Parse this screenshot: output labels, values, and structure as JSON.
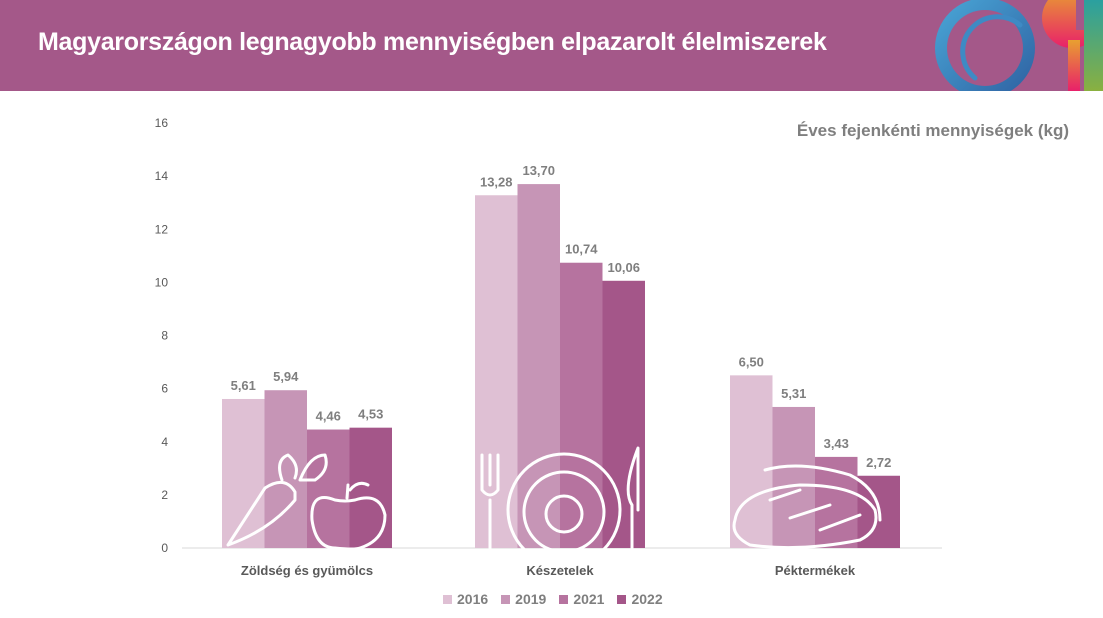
{
  "header": {
    "title": "Magyarországon legnagyobb mennyiségben elpazarolt élelmiszerek"
  },
  "chart_data": {
    "type": "bar",
    "title": "Magyarországon legnagyobb mennyiségben elpazarolt élelmiszerek",
    "subtitle": "Éves fejenkénti mennyiségek (kg)",
    "categories": [
      "Zöldség és gyümölcs",
      "Készételek",
      "Péktermékek"
    ],
    "series": [
      {
        "name": "2016",
        "color": "#dfc0d4",
        "values": [
          5.61,
          13.28,
          6.5
        ],
        "labels": [
          "5,61",
          "13,28",
          "6,50"
        ]
      },
      {
        "name": "2019",
        "color": "#c695b6",
        "values": [
          5.94,
          13.7,
          5.31
        ],
        "labels": [
          "5,94",
          "13,70",
          "5,31"
        ]
      },
      {
        "name": "2021",
        "color": "#b6739f",
        "values": [
          4.46,
          10.74,
          3.43
        ],
        "labels": [
          "4,46",
          "10,74",
          "3,43"
        ]
      },
      {
        "name": "2022",
        "color": "#a45689",
        "values": [
          4.53,
          10.06,
          2.72
        ],
        "labels": [
          "4,53",
          "10,06",
          "2,72"
        ]
      }
    ],
    "yticks": [
      "0",
      "2",
      "4",
      "6",
      "8",
      "10",
      "12",
      "14",
      "16"
    ],
    "ylim": [
      0,
      16
    ],
    "grid": false,
    "legend": "bottom-center",
    "xlabel": "",
    "ylabel": ""
  }
}
